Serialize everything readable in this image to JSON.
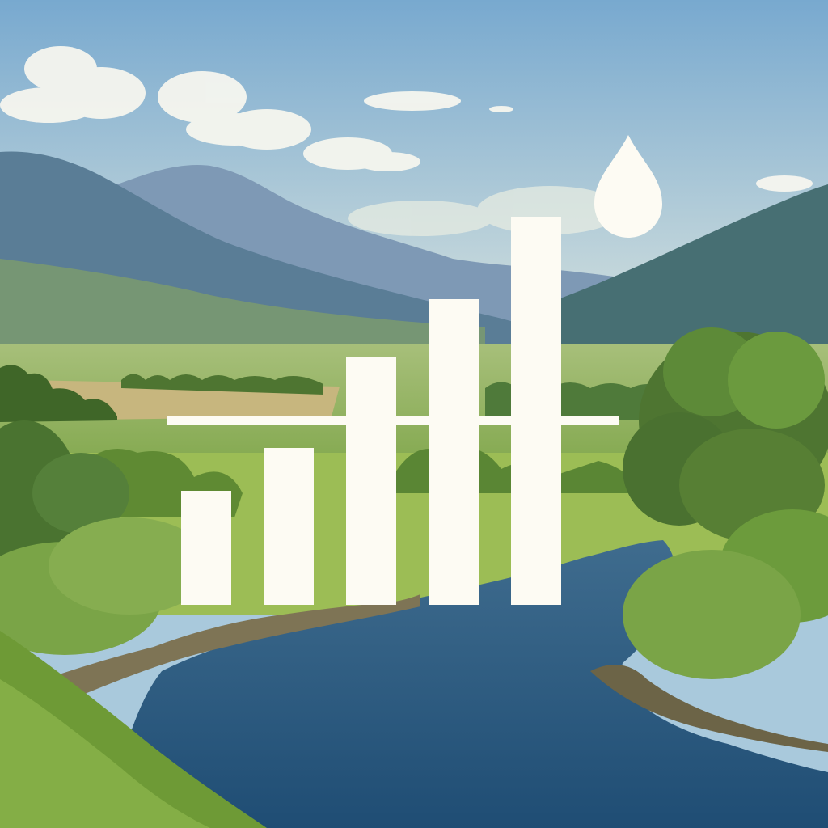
{
  "scene": {
    "sky_top": "#78a9cf",
    "sky_horizon": "#dde6df",
    "mountain_far": "#7e99b5",
    "mountain_mid": "#5a7d96",
    "mountain_near_right": "#476f73",
    "meadow": "#8fb163",
    "field_yellow": "#c7b67e",
    "tree_dark": "#4e7531",
    "tree_light": "#7aa447",
    "river_top": "#3f6c8e",
    "river_bottom": "#1f4d74",
    "grass_fore": "#6e9a36"
  },
  "icon": {
    "color": "#fdfbf3",
    "bar_levels": [
      0.29,
      0.4,
      0.63,
      0.78,
      0.99
    ],
    "has_baseline": true,
    "has_droplet": true
  }
}
